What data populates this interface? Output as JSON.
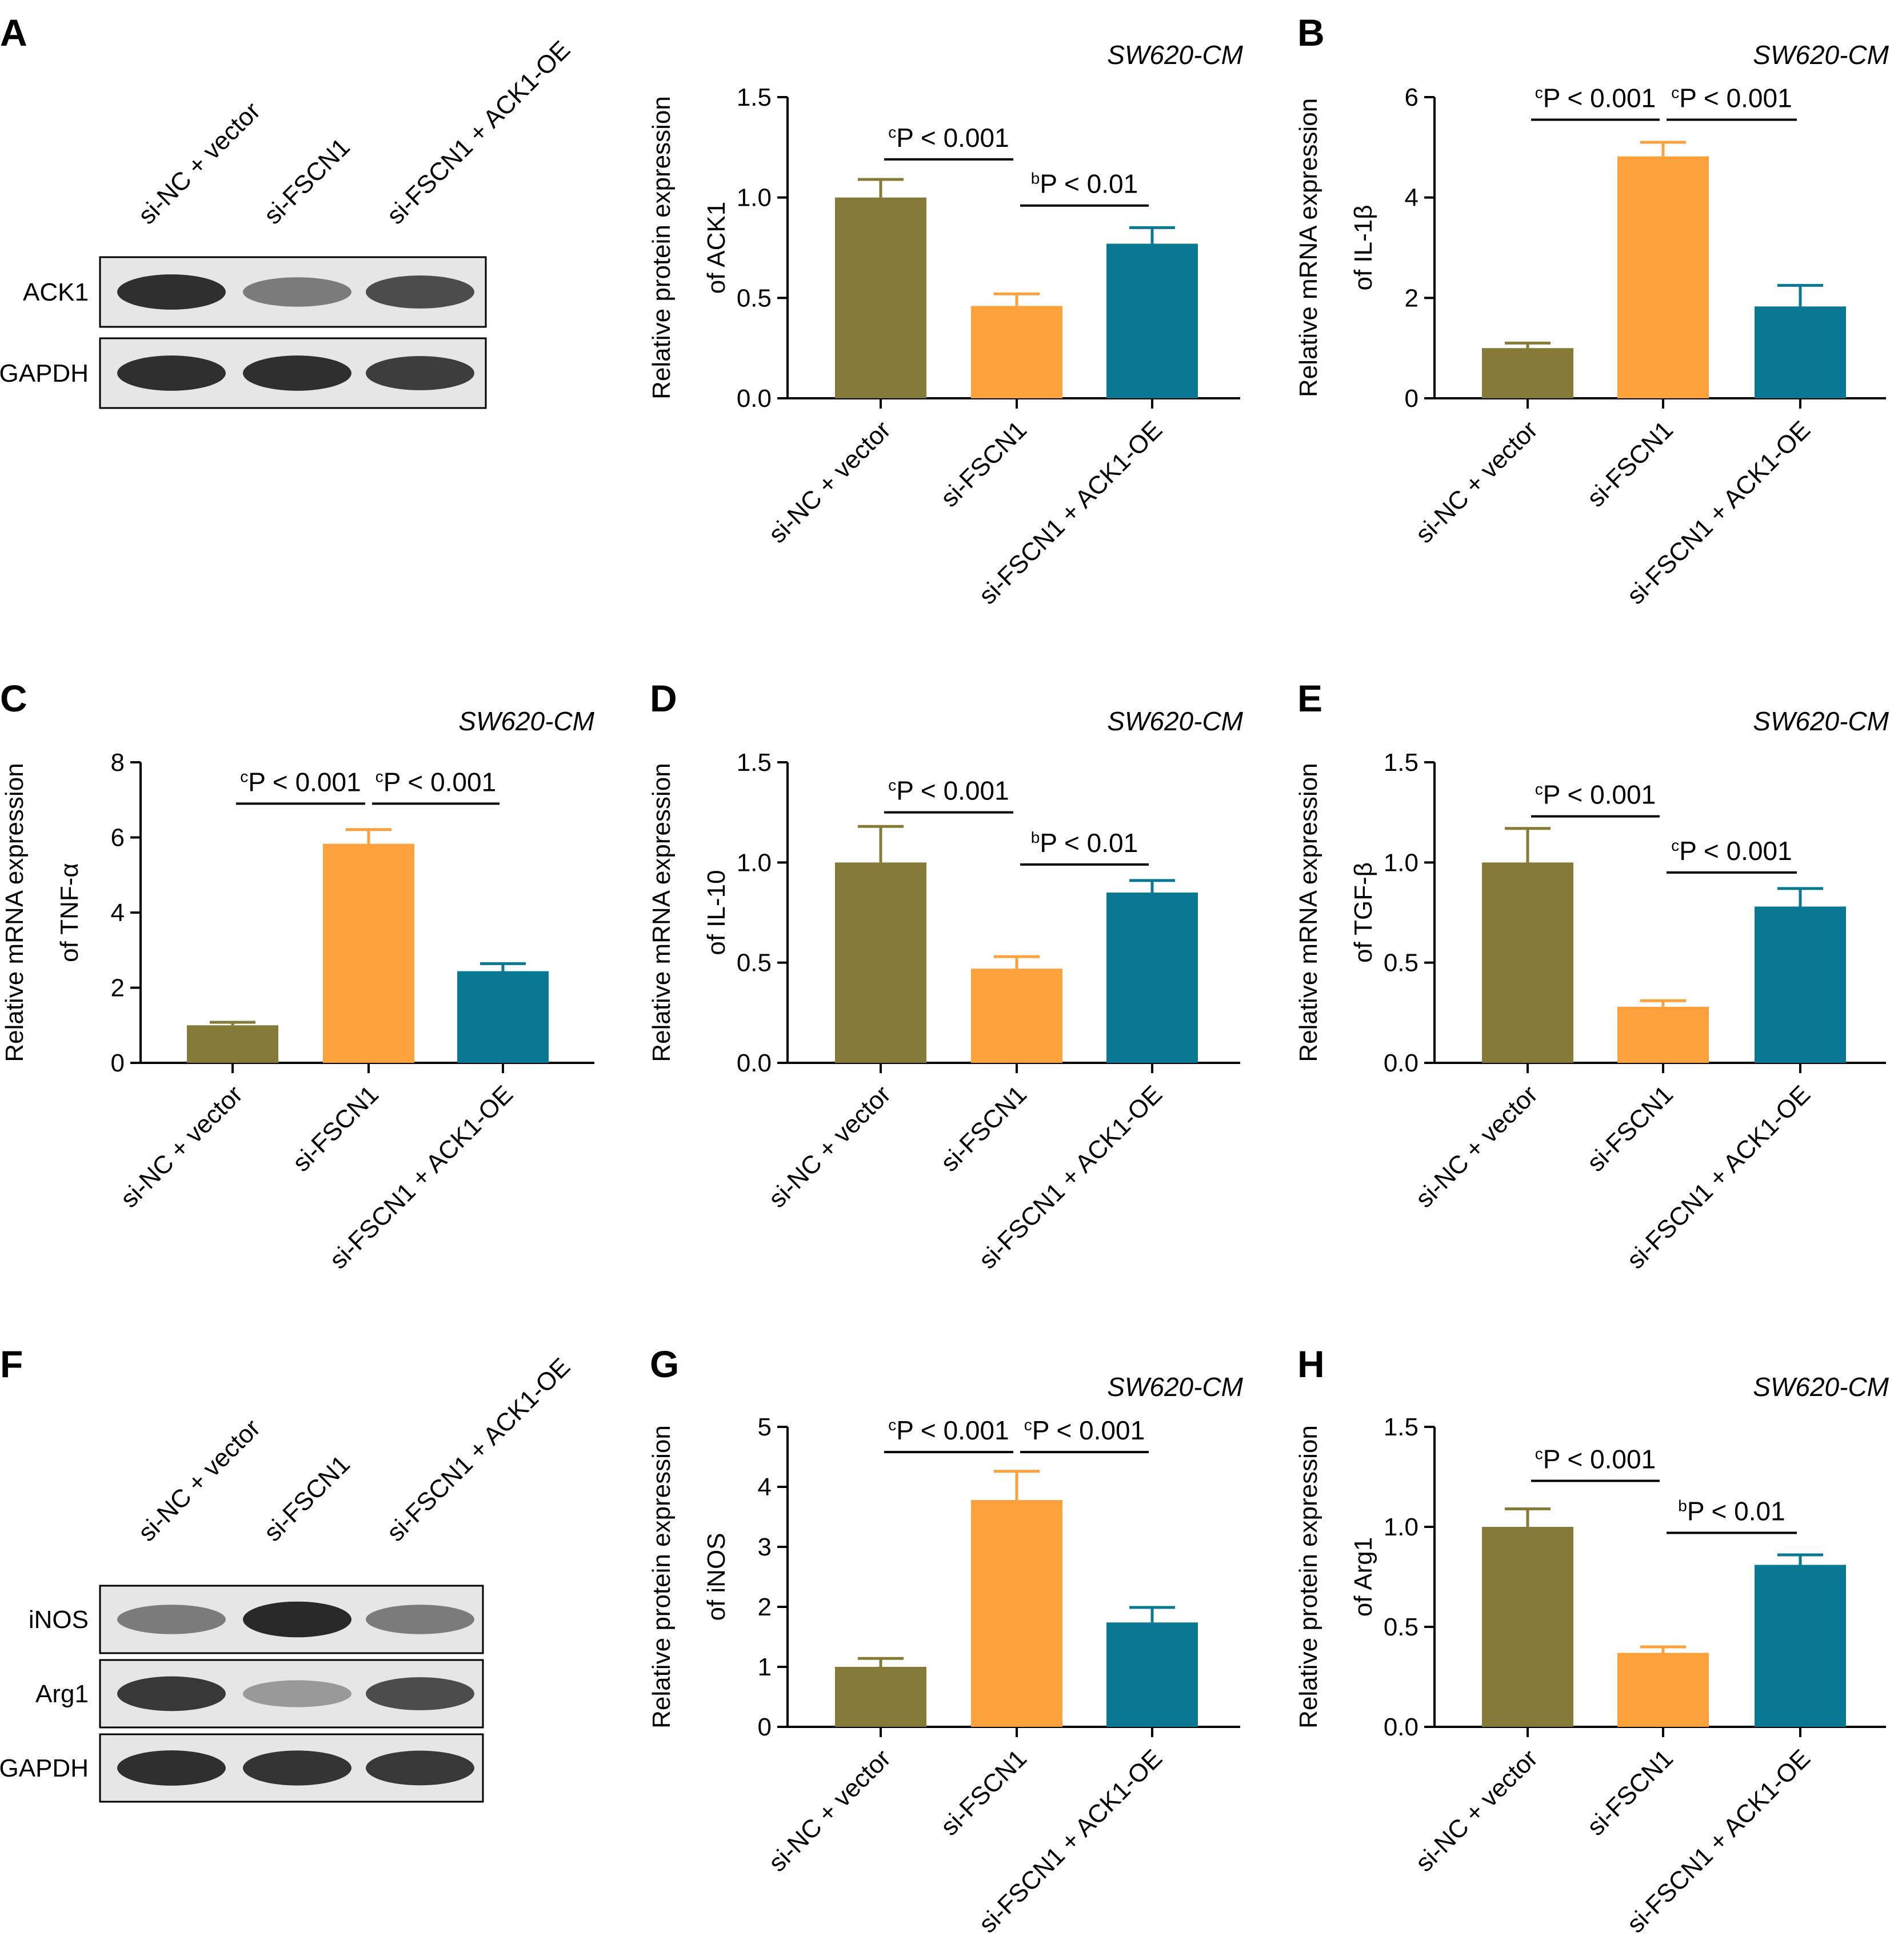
{
  "colors": {
    "si_nc_vector": "#867a38",
    "si_fscn1": "#fda13d",
    "si_fscn1_ack1_oe": "#0b7893"
  },
  "blots": [
    {
      "panel": "A",
      "lanes": [
        "si-NC + vector",
        "si-FSCN1",
        "si-FSCN1 + ACK1-OE"
      ],
      "rows": [
        {
          "label": "ACK1",
          "intensity": [
            0.92,
            0.55,
            0.78
          ]
        },
        {
          "label": "GAPDH",
          "intensity": [
            0.92,
            0.92,
            0.85
          ]
        }
      ]
    },
    {
      "panel": "F",
      "lanes": [
        "si-NC + vector",
        "si-FSCN1",
        "si-FSCN1 + ACK1-OE"
      ],
      "rows": [
        {
          "label": "iNOS",
          "intensity": [
            0.55,
            0.95,
            0.55
          ]
        },
        {
          "label": "Arg1",
          "intensity": [
            0.88,
            0.4,
            0.78
          ]
        },
        {
          "label": "GAPDH",
          "intensity": [
            0.92,
            0.9,
            0.88
          ]
        }
      ]
    }
  ],
  "chart_data": [
    {
      "panel": "A",
      "type": "bar",
      "title": "SW620-CM",
      "ylabel": [
        "Relative protein expression",
        "of ACK1"
      ],
      "categories": [
        "si-NC + vector",
        "si-FSCN1",
        "si-FSCN1 + ACK1-OE"
      ],
      "values": [
        1.0,
        0.46,
        0.77
      ],
      "errors": [
        0.09,
        0.06,
        0.08
      ],
      "ylim": [
        0,
        1.5
      ],
      "yticks": [
        "0.0",
        "0.5",
        "1.0",
        "1.5"
      ],
      "significance": [
        {
          "from": 0,
          "to": 1,
          "sup": "c",
          "text": "P < 0.001",
          "y": 1.19
        },
        {
          "from": 1,
          "to": 2,
          "sup": "b",
          "text": "P < 0.01",
          "y": 0.96
        }
      ]
    },
    {
      "panel": "B",
      "type": "bar",
      "title": "SW620-CM",
      "ylabel": [
        "Relative mRNA expression",
        "of IL-1β"
      ],
      "categories": [
        "si-NC + vector",
        "si-FSCN1",
        "si-FSCN1 + ACK1-OE"
      ],
      "values": [
        1.0,
        4.82,
        1.83
      ],
      "errors": [
        0.1,
        0.28,
        0.42
      ],
      "ylim": [
        0,
        6
      ],
      "yticks": [
        "0",
        "2",
        "4",
        "6"
      ],
      "significance": [
        {
          "from": 0,
          "to": 1,
          "sup": "c",
          "text": "P < 0.001",
          "y": 5.55
        },
        {
          "from": 1,
          "to": 2,
          "sup": "c",
          "text": "P < 0.001",
          "y": 5.55
        }
      ]
    },
    {
      "panel": "C",
      "type": "bar",
      "title": "SW620-CM",
      "ylabel": [
        "Relative mRNA expression",
        "of TNF-α"
      ],
      "categories": [
        "si-NC + vector",
        "si-FSCN1",
        "si-FSCN1 + ACK1-OE"
      ],
      "values": [
        1.0,
        5.83,
        2.44
      ],
      "errors": [
        0.08,
        0.38,
        0.2
      ],
      "ylim": [
        0,
        8
      ],
      "yticks": [
        "0",
        "2",
        "4",
        "6",
        "8"
      ],
      "significance": [
        {
          "from": 0,
          "to": 1,
          "sup": "c",
          "text": "P < 0.001",
          "y": 6.9
        },
        {
          "from": 1,
          "to": 2,
          "sup": "c",
          "text": "P < 0.001",
          "y": 6.9
        }
      ]
    },
    {
      "panel": "D",
      "type": "bar",
      "title": "SW620-CM",
      "ylabel": [
        "Relative mRNA expression",
        "of IL-10"
      ],
      "categories": [
        "si-NC + vector",
        "si-FSCN1",
        "si-FSCN1 + ACK1-OE"
      ],
      "values": [
        1.0,
        0.47,
        0.85
      ],
      "errors": [
        0.18,
        0.06,
        0.06
      ],
      "ylim": [
        0,
        1.5
      ],
      "yticks": [
        "0.0",
        "0.5",
        "1.0",
        "1.5"
      ],
      "significance": [
        {
          "from": 0,
          "to": 1,
          "sup": "c",
          "text": "P < 0.001",
          "y": 1.25
        },
        {
          "from": 1,
          "to": 2,
          "sup": "b",
          "text": "P < 0.01",
          "y": 0.99
        }
      ]
    },
    {
      "panel": "E",
      "type": "bar",
      "title": "SW620-CM",
      "ylabel": [
        "Relative mRNA expression",
        "of TGF-β"
      ],
      "categories": [
        "si-NC + vector",
        "si-FSCN1",
        "si-FSCN1 + ACK1-OE"
      ],
      "values": [
        1.0,
        0.28,
        0.78
      ],
      "errors": [
        0.17,
        0.03,
        0.09
      ],
      "ylim": [
        0,
        1.5
      ],
      "yticks": [
        "0.0",
        "0.5",
        "1.0",
        "1.5"
      ],
      "significance": [
        {
          "from": 0,
          "to": 1,
          "sup": "c",
          "text": "P < 0.001",
          "y": 1.23
        },
        {
          "from": 1,
          "to": 2,
          "sup": "c",
          "text": "P < 0.001",
          "y": 0.95
        }
      ]
    },
    {
      "panel": "G",
      "type": "bar",
      "title": "SW620-CM",
      "ylabel": [
        "Relative protein expression",
        "of iNOS"
      ],
      "categories": [
        "si-NC + vector",
        "si-FSCN1",
        "si-FSCN1 + ACK1-OE"
      ],
      "values": [
        1.0,
        3.78,
        1.74
      ],
      "errors": [
        0.14,
        0.48,
        0.25
      ],
      "ylim": [
        0,
        5
      ],
      "yticks": [
        "0",
        "1",
        "2",
        "3",
        "4",
        "5"
      ],
      "significance": [
        {
          "from": 0,
          "to": 1,
          "sup": "c",
          "text": "P < 0.001",
          "y": 4.58
        },
        {
          "from": 1,
          "to": 2,
          "sup": "c",
          "text": "P < 0.001",
          "y": 4.58
        }
      ]
    },
    {
      "panel": "H",
      "type": "bar",
      "title": "SW620-CM",
      "ylabel": [
        "Relative protein expression",
        "of Arg1"
      ],
      "categories": [
        "si-NC + vector",
        "si-FSCN1",
        "si-FSCN1 + ACK1-OE"
      ],
      "values": [
        1.0,
        0.37,
        0.81
      ],
      "errors": [
        0.09,
        0.03,
        0.05
      ],
      "ylim": [
        0,
        1.5
      ],
      "yticks": [
        "0.0",
        "0.5",
        "1.0",
        "1.5"
      ],
      "significance": [
        {
          "from": 0,
          "to": 1,
          "sup": "c",
          "text": "P < 0.001",
          "y": 1.23
        },
        {
          "from": 1,
          "to": 2,
          "sup": "b",
          "text": "P < 0.01",
          "y": 0.97
        }
      ]
    }
  ]
}
